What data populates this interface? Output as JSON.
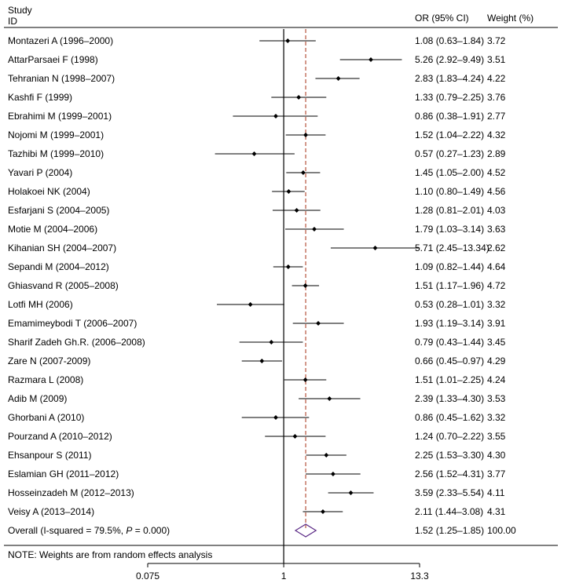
{
  "header": {
    "study_line1": "Study",
    "study_line2": "ID",
    "or_label": "OR (95% CI)",
    "weight_label": "Weight (%)"
  },
  "note": "NOTE: Weights are from random effects analysis",
  "colors": {
    "null_line": "#000000",
    "pooled_line": "#b5533c",
    "diamond": "#5b2a86",
    "marker": "#000000"
  },
  "chart_data": {
    "type": "forest",
    "scale": "log",
    "x_ticks": [
      {
        "value": 0.075,
        "label": "0.075"
      },
      {
        "value": 1,
        "label": "1"
      },
      {
        "value": 13.3,
        "label": "13.3"
      }
    ],
    "xlim": [
      0.075,
      13.3
    ],
    "null_value": 1,
    "studies": [
      {
        "study": "Montazeri A (1996–2000)",
        "or": 1.08,
        "lo": 0.63,
        "hi": 1.84,
        "ci_text": "1.08 (0.63–1.84)",
        "weight": "3.72"
      },
      {
        "study": "AttarParsaei F (1998)",
        "or": 5.26,
        "lo": 2.92,
        "hi": 9.49,
        "ci_text": "5.26 (2.92–9.49)",
        "weight": "3.51"
      },
      {
        "study": "Tehranian N (1998–2007)",
        "or": 2.83,
        "lo": 1.83,
        "hi": 4.24,
        "ci_text": "2.83 (1.83–4.24)",
        "weight": "4.22"
      },
      {
        "study": "Kashfi F (1999)",
        "or": 1.33,
        "lo": 0.79,
        "hi": 2.25,
        "ci_text": "1.33 (0.79–2.25)",
        "weight": "3.76"
      },
      {
        "study": "Ebrahimi M (1999–2001)",
        "or": 0.86,
        "lo": 0.38,
        "hi": 1.91,
        "ci_text": "0.86 (0.38–1.91)",
        "weight": "2.77"
      },
      {
        "study": "Nojomi M (1999–2001)",
        "or": 1.52,
        "lo": 1.04,
        "hi": 2.22,
        "ci_text": "1.52 (1.04–2.22)",
        "weight": "4.32"
      },
      {
        "study": "Tazhibi M (1999–2010)",
        "or": 0.57,
        "lo": 0.27,
        "hi": 1.23,
        "ci_text": "0.57 (0.27–1.23)",
        "weight": "2.89"
      },
      {
        "study": "Yavari P (2004)",
        "or": 1.45,
        "lo": 1.05,
        "hi": 2.0,
        "ci_text": "1.45 (1.05–2.00)",
        "weight": "4.52"
      },
      {
        "study": "Holakoei NK (2004)",
        "or": 1.1,
        "lo": 0.8,
        "hi": 1.49,
        "ci_text": "1.10 (0.80–1.49)",
        "weight": "4.56"
      },
      {
        "study": "Esfarjani S (2004–2005)",
        "or": 1.28,
        "lo": 0.81,
        "hi": 2.01,
        "ci_text": "1.28 (0.81–2.01)",
        "weight": "4.03"
      },
      {
        "study": "Motie M (2004–2006)",
        "or": 1.79,
        "lo": 1.03,
        "hi": 3.14,
        "ci_text": "1.79 (1.03–3.14)",
        "weight": "3.63"
      },
      {
        "study": "Kihanian SH (2004–2007)",
        "or": 5.71,
        "lo": 2.45,
        "hi": 13.34,
        "ci_text": "5.71 (2.45–13.34)",
        "weight": "2.62"
      },
      {
        "study": "Sepandi M (2004–2012)",
        "or": 1.09,
        "lo": 0.82,
        "hi": 1.44,
        "ci_text": "1.09 (0.82–1.44)",
        "weight": "4.64"
      },
      {
        "study": "Ghiasvand R (2005–2008)",
        "or": 1.51,
        "lo": 1.17,
        "hi": 1.96,
        "ci_text": "1.51 (1.17–1.96)",
        "weight": "4.72"
      },
      {
        "study": "Lotfi MH (2006)",
        "or": 0.53,
        "lo": 0.28,
        "hi": 1.01,
        "ci_text": "0.53 (0.28–1.01)",
        "weight": "3.32"
      },
      {
        "study": "Emamimeybodi T (2006–2007)",
        "or": 1.93,
        "lo": 1.19,
        "hi": 3.14,
        "ci_text": "1.93 (1.19–3.14)",
        "weight": "3.91"
      },
      {
        "study": "Sharif Zadeh Gh.R. (2006–2008)",
        "or": 0.79,
        "lo": 0.43,
        "hi": 1.44,
        "ci_text": "0.79 (0.43–1.44)",
        "weight": "3.45"
      },
      {
        "study": "Zare N (2007-2009)",
        "or": 0.66,
        "lo": 0.45,
        "hi": 0.97,
        "ci_text": "0.66 (0.45–0.97)",
        "weight": "4.29"
      },
      {
        "study": "Razmara L (2008)",
        "or": 1.51,
        "lo": 1.01,
        "hi": 2.25,
        "ci_text": "1.51 (1.01–2.25)",
        "weight": "4.24"
      },
      {
        "study": "Adib M (2009)",
        "or": 2.39,
        "lo": 1.33,
        "hi": 4.3,
        "ci_text": "2.39 (1.33–4.30)",
        "weight": "3.53"
      },
      {
        "study": "Ghorbani A (2010)",
        "or": 0.86,
        "lo": 0.45,
        "hi": 1.62,
        "ci_text": "0.86 (0.45–1.62)",
        "weight": "3.32"
      },
      {
        "study": "Pourzand A (2010–2012)",
        "or": 1.24,
        "lo": 0.7,
        "hi": 2.22,
        "ci_text": "1.24 (0.70–2.22)",
        "weight": "3.55"
      },
      {
        "study": "Ehsanpour S (2011)",
        "or": 2.25,
        "lo": 1.53,
        "hi": 3.3,
        "ci_text": "2.25 (1.53–3.30)",
        "weight": "4.30"
      },
      {
        "study": "Eslamian GH (2011–2012)",
        "or": 2.56,
        "lo": 1.52,
        "hi": 4.31,
        "ci_text": "2.56 (1.52–4.31)",
        "weight": "3.77"
      },
      {
        "study": "Hosseinzadeh M (2012–2013)",
        "or": 3.59,
        "lo": 2.33,
        "hi": 5.54,
        "ci_text": "3.59 (2.33–5.54)",
        "weight": "4.11"
      },
      {
        "study": "Veisy A (2013–2014)",
        "or": 2.11,
        "lo": 1.44,
        "hi": 3.08,
        "ci_text": "2.11 (1.44–3.08)",
        "weight": "4.31"
      }
    ],
    "overall": {
      "label_prefix": "Overall  (I-squared = 79.5%, ",
      "label_p": "P",
      "label_suffix": " = 0.000)",
      "or": 1.52,
      "lo": 1.25,
      "hi": 1.85,
      "ci_text": "1.52 (1.25–1.85)",
      "weight": "100.00"
    }
  }
}
